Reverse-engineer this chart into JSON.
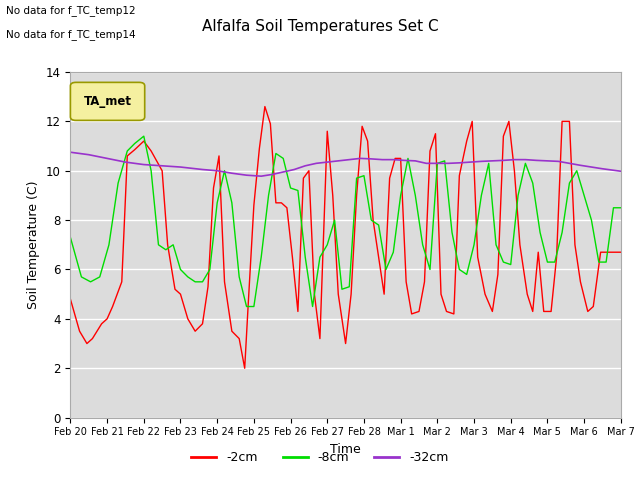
{
  "title": "Alfalfa Soil Temperatures Set C",
  "xlabel": "Time",
  "ylabel": "Soil Temperature (C)",
  "ylim": [
    0,
    14
  ],
  "background_color": "#dcdcdc",
  "plot_bg_color": "#dcdcdc",
  "outer_bg_color": "#ffffff",
  "notes": [
    "No data for f_TC_temp12",
    "No data for f_TC_temp14"
  ],
  "legend_label": "TA_met",
  "legend_box_facecolor": "#f5f0a0",
  "legend_box_edgecolor": "#999900",
  "x_tick_labels": [
    "Feb 20",
    "Feb 21",
    "Feb 22",
    "Feb 23",
    "Feb 24",
    "Feb 25",
    "Feb 26",
    "Feb 27",
    "Feb 28",
    "Mar 1",
    "Mar 2",
    "Mar 3",
    "Mar 4",
    "Mar 5",
    "Mar 6",
    "Mar 7"
  ],
  "series_2cm_color": "#ff0000",
  "series_2cm_label": "-2cm",
  "series_2cm_x": [
    0,
    0.25,
    0.45,
    0.6,
    0.85,
    1.0,
    1.15,
    1.4,
    1.55,
    1.75,
    2.0,
    2.2,
    2.35,
    2.5,
    2.65,
    2.85,
    3.0,
    3.2,
    3.4,
    3.6,
    3.75,
    3.9,
    4.05,
    4.2,
    4.4,
    4.6,
    4.75,
    4.85,
    5.0,
    5.15,
    5.3,
    5.45,
    5.6,
    5.75,
    5.9,
    6.05,
    6.2,
    6.35,
    6.5,
    6.65,
    6.8,
    7.0,
    7.15,
    7.3,
    7.5,
    7.65,
    7.8,
    7.95,
    8.1,
    8.25,
    8.4,
    8.55,
    8.7,
    8.85,
    9.0,
    9.15,
    9.3,
    9.5,
    9.65,
    9.8,
    9.95,
    10.1,
    10.25,
    10.45,
    10.6,
    10.8,
    10.95,
    11.1,
    11.3,
    11.5,
    11.65,
    11.8,
    11.95,
    12.1,
    12.25,
    12.45,
    12.6,
    12.75,
    12.9,
    13.1,
    13.25,
    13.4,
    13.6,
    13.75,
    13.9,
    14.1,
    14.25,
    14.45,
    14.6,
    14.75,
    14.9,
    15.0
  ],
  "series_2cm_y": [
    4.8,
    3.5,
    3.0,
    3.2,
    3.8,
    4.0,
    4.5,
    5.5,
    10.6,
    10.85,
    11.2,
    10.8,
    10.4,
    10.0,
    7.0,
    5.2,
    5.0,
    4.0,
    3.5,
    3.8,
    5.3,
    9.3,
    10.6,
    5.5,
    3.5,
    3.2,
    2.0,
    4.7,
    8.6,
    10.9,
    12.6,
    11.9,
    8.7,
    8.7,
    8.5,
    6.5,
    4.3,
    9.7,
    10.0,
    5.0,
    3.2,
    11.6,
    9.0,
    5.0,
    3.0,
    5.0,
    9.0,
    11.8,
    11.2,
    8.0,
    6.5,
    5.0,
    9.7,
    10.5,
    10.5,
    5.5,
    4.2,
    4.3,
    5.5,
    10.8,
    11.5,
    5.0,
    4.3,
    4.2,
    9.8,
    11.2,
    12.0,
    6.5,
    5.0,
    4.3,
    5.8,
    11.4,
    12.0,
    10.0,
    7.0,
    5.0,
    4.3,
    6.7,
    4.3,
    4.3,
    6.5,
    12.0,
    12.0,
    7.0,
    5.5,
    4.3,
    4.5,
    6.7,
    6.7,
    6.7,
    6.7,
    6.7
  ],
  "series_8cm_color": "#00dd00",
  "series_8cm_label": "-8cm",
  "series_8cm_x": [
    0,
    0.3,
    0.55,
    0.8,
    1.05,
    1.3,
    1.55,
    1.75,
    2.0,
    2.2,
    2.4,
    2.6,
    2.8,
    3.0,
    3.2,
    3.4,
    3.6,
    3.8,
    4.0,
    4.2,
    4.4,
    4.6,
    4.8,
    5.0,
    5.2,
    5.4,
    5.6,
    5.8,
    6.0,
    6.2,
    6.4,
    6.6,
    6.8,
    7.0,
    7.2,
    7.4,
    7.6,
    7.8,
    8.0,
    8.2,
    8.4,
    8.6,
    8.8,
    9.0,
    9.2,
    9.4,
    9.6,
    9.8,
    10.0,
    10.2,
    10.4,
    10.6,
    10.8,
    11.0,
    11.2,
    11.4,
    11.6,
    11.8,
    12.0,
    12.2,
    12.4,
    12.6,
    12.8,
    13.0,
    13.2,
    13.4,
    13.6,
    13.8,
    14.0,
    14.2,
    14.4,
    14.6,
    14.8,
    15.0
  ],
  "series_8cm_y": [
    7.3,
    5.7,
    5.5,
    5.7,
    7.0,
    9.5,
    10.8,
    11.1,
    11.4,
    10.0,
    7.0,
    6.8,
    7.0,
    6.0,
    5.7,
    5.5,
    5.5,
    6.0,
    8.7,
    10.0,
    8.7,
    5.7,
    4.5,
    4.5,
    6.5,
    9.0,
    10.7,
    10.5,
    9.3,
    9.2,
    6.5,
    4.5,
    6.5,
    7.0,
    8.0,
    5.2,
    5.3,
    9.7,
    9.8,
    8.0,
    7.8,
    6.0,
    6.7,
    9.0,
    10.5,
    9.0,
    7.0,
    6.0,
    10.3,
    10.4,
    7.5,
    6.0,
    5.8,
    7.0,
    9.0,
    10.3,
    7.0,
    6.3,
    6.2,
    9.0,
    10.3,
    9.5,
    7.5,
    6.3,
    6.3,
    7.5,
    9.5,
    10.0,
    9.0,
    8.0,
    6.3,
    6.3,
    8.5,
    8.5
  ],
  "series_32cm_color": "#9933cc",
  "series_32cm_label": "-32cm",
  "series_32cm_x": [
    0,
    0.5,
    1.0,
    1.5,
    2.0,
    2.5,
    3.0,
    3.3,
    3.6,
    4.0,
    4.4,
    4.8,
    5.2,
    5.5,
    5.8,
    6.1,
    6.4,
    6.7,
    7.0,
    7.3,
    7.6,
    7.9,
    8.2,
    8.5,
    8.8,
    9.1,
    9.4,
    9.7,
    10.0,
    10.3,
    10.6,
    10.9,
    11.2,
    11.5,
    11.8,
    12.1,
    12.4,
    12.7,
    13.0,
    13.3,
    13.6,
    13.9,
    14.2,
    14.5,
    14.8,
    15.0
  ],
  "series_32cm_y": [
    10.75,
    10.65,
    10.5,
    10.35,
    10.25,
    10.2,
    10.15,
    10.1,
    10.05,
    10.0,
    9.9,
    9.82,
    9.78,
    9.85,
    9.95,
    10.05,
    10.2,
    10.3,
    10.35,
    10.4,
    10.45,
    10.5,
    10.48,
    10.45,
    10.45,
    10.42,
    10.4,
    10.3,
    10.3,
    10.3,
    10.32,
    10.35,
    10.38,
    10.4,
    10.42,
    10.45,
    10.45,
    10.42,
    10.4,
    10.38,
    10.3,
    10.22,
    10.15,
    10.08,
    10.02,
    9.98
  ]
}
